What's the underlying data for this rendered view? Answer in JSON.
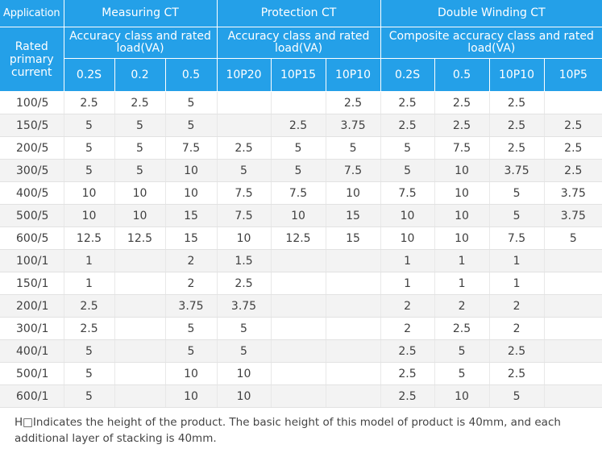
{
  "header": {
    "application_label": "Application",
    "groups": [
      "Measuring CT",
      "Protection CT",
      "Double Winding CT"
    ],
    "rated_primary_current_label": "Rated primary current",
    "subgroups": [
      "Accuracy class and rated load(VA)",
      "Accuracy class and rated load(VA)",
      "Composite accuracy class and rated load(VA)"
    ],
    "columns": [
      "0.2S",
      "0.2",
      "0.5",
      "10P20",
      "10P15",
      "10P10",
      "0.2S",
      "0.5",
      "10P10",
      "10P5"
    ]
  },
  "rows": [
    {
      "current": "100/5",
      "values": [
        "2.5",
        "2.5",
        "5",
        "",
        "",
        "2.5",
        "2.5",
        "2.5",
        "2.5",
        ""
      ]
    },
    {
      "current": "150/5",
      "values": [
        "5",
        "5",
        "5",
        "",
        "2.5",
        "3.75",
        "2.5",
        "2.5",
        "2.5",
        "2.5"
      ]
    },
    {
      "current": "200/5",
      "values": [
        "5",
        "5",
        "7.5",
        "2.5",
        "5",
        "5",
        "5",
        "7.5",
        "2.5",
        "2.5"
      ]
    },
    {
      "current": "300/5",
      "values": [
        "5",
        "5",
        "10",
        "5",
        "5",
        "7.5",
        "5",
        "10",
        "3.75",
        "2.5"
      ]
    },
    {
      "current": "400/5",
      "values": [
        "10",
        "10",
        "10",
        "7.5",
        "7.5",
        "10",
        "7.5",
        "10",
        "5",
        "3.75"
      ]
    },
    {
      "current": "500/5",
      "values": [
        "10",
        "10",
        "15",
        "7.5",
        "10",
        "15",
        "10",
        "10",
        "5",
        "3.75"
      ]
    },
    {
      "current": "600/5",
      "values": [
        "12.5",
        "12.5",
        "15",
        "10",
        "12.5",
        "15",
        "10",
        "10",
        "7.5",
        "5"
      ]
    },
    {
      "current": "100/1",
      "values": [
        "1",
        "",
        "2",
        "1.5",
        "",
        "",
        "1",
        "1",
        "1",
        ""
      ]
    },
    {
      "current": "150/1",
      "values": [
        "1",
        "",
        "2",
        "2.5",
        "",
        "",
        "1",
        "1",
        "1",
        ""
      ]
    },
    {
      "current": "200/1",
      "values": [
        "2.5",
        "",
        "3.75",
        "3.75",
        "",
        "",
        "2",
        "2",
        "2",
        ""
      ]
    },
    {
      "current": "300/1",
      "values": [
        "2.5",
        "",
        "5",
        "5",
        "",
        "",
        "2",
        "2.5",
        "2",
        ""
      ]
    },
    {
      "current": "400/1",
      "values": [
        "5",
        "",
        "5",
        "5",
        "",
        "",
        "2.5",
        "5",
        "2.5",
        ""
      ]
    },
    {
      "current": "500/1",
      "values": [
        "5",
        "",
        "10",
        "10",
        "",
        "",
        "2.5",
        "5",
        "2.5",
        ""
      ]
    },
    {
      "current": "600/1",
      "values": [
        "5",
        "",
        "10",
        "10",
        "",
        "",
        "2.5",
        "10",
        "5",
        ""
      ]
    }
  ],
  "footnote": "H□Indicates the height of the product. The basic height of this model of product is 40mm, and each additional layer of stacking is 40mm.",
  "colors": {
    "header_bg": "#24a0e8",
    "header_text": "#ffffff",
    "stripe_bg": "#f3f3f3"
  }
}
